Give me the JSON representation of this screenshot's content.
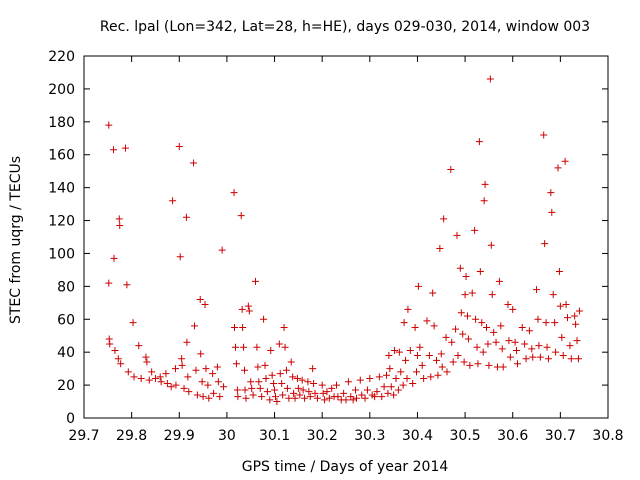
{
  "chart_data": {
    "type": "scatter",
    "title": "Rec. lpal (Lon=342, Lat=28, h=HE), days 029-030, 2014, window 003",
    "xlabel": "GPS time / Days of year 2014",
    "ylabel": "STEC from uqrg / TECUs",
    "xlim": [
      29.7,
      30.8
    ],
    "ylim": [
      0,
      220
    ],
    "xticks": [
      "29.7",
      "29.8",
      "29.9",
      "30",
      "30.1",
      "30.2",
      "30.3",
      "30.4",
      "30.5",
      "30.6",
      "30.7",
      "30.8"
    ],
    "yticks": [
      "0",
      "20",
      "40",
      "60",
      "80",
      "100",
      "120",
      "140",
      "160",
      "180",
      "200",
      "220"
    ],
    "grid": false,
    "legend": "none",
    "marker": "plus",
    "color": "#cc0000",
    "points": [
      [
        29.752,
        178
      ],
      [
        29.752,
        82
      ],
      [
        29.753,
        48
      ],
      [
        29.754,
        45
      ],
      [
        29.762,
        163
      ],
      [
        29.763,
        97
      ],
      [
        29.765,
        41
      ],
      [
        29.772,
        36
      ],
      [
        29.774,
        121
      ],
      [
        29.775,
        117
      ],
      [
        29.777,
        33
      ],
      [
        29.787,
        164
      ],
      [
        29.79,
        81
      ],
      [
        29.793,
        28
      ],
      [
        29.803,
        58
      ],
      [
        29.805,
        25
      ],
      [
        29.815,
        44
      ],
      [
        29.82,
        24
      ],
      [
        29.83,
        37
      ],
      [
        29.832,
        34
      ],
      [
        29.837,
        23
      ],
      [
        29.842,
        28
      ],
      [
        29.85,
        24
      ],
      [
        29.86,
        25
      ],
      [
        29.862,
        22
      ],
      [
        29.872,
        27
      ],
      [
        29.875,
        21
      ],
      [
        29.883,
        19
      ],
      [
        29.886,
        132
      ],
      [
        29.892,
        30
      ],
      [
        29.893,
        20
      ],
      [
        29.9,
        165
      ],
      [
        29.902,
        98
      ],
      [
        29.905,
        36
      ],
      [
        29.906,
        32
      ],
      [
        29.91,
        18
      ],
      [
        29.915,
        122
      ],
      [
        29.916,
        46
      ],
      [
        29.918,
        25
      ],
      [
        29.92,
        16
      ],
      [
        29.93,
        155
      ],
      [
        29.932,
        56
      ],
      [
        29.935,
        29
      ],
      [
        29.938,
        14
      ],
      [
        29.944,
        72
      ],
      [
        29.945,
        39
      ],
      [
        29.948,
        22
      ],
      [
        29.95,
        13
      ],
      [
        29.954,
        69
      ],
      [
        29.956,
        30
      ],
      [
        29.96,
        20
      ],
      [
        29.962,
        12
      ],
      [
        29.97,
        27
      ],
      [
        29.972,
        15
      ],
      [
        29.98,
        31
      ],
      [
        29.982,
        22
      ],
      [
        29.985,
        13
      ],
      [
        29.99,
        102
      ],
      [
        29.993,
        19
      ],
      [
        30.015,
        137
      ],
      [
        30.016,
        55
      ],
      [
        30.018,
        43
      ],
      [
        30.02,
        33
      ],
      [
        30.022,
        17
      ],
      [
        30.023,
        13
      ],
      [
        30.03,
        123
      ],
      [
        30.032,
        66
      ],
      [
        30.033,
        55
      ],
      [
        30.035,
        43
      ],
      [
        30.037,
        29
      ],
      [
        30.038,
        17
      ],
      [
        30.04,
        12
      ],
      [
        30.045,
        68
      ],
      [
        30.047,
        65
      ],
      [
        30.05,
        22
      ],
      [
        30.052,
        18
      ],
      [
        30.055,
        14
      ],
      [
        30.06,
        83
      ],
      [
        30.063,
        43
      ],
      [
        30.065,
        31
      ],
      [
        30.067,
        22
      ],
      [
        30.07,
        18
      ],
      [
        30.073,
        13
      ],
      [
        30.077,
        60
      ],
      [
        30.08,
        32
      ],
      [
        30.082,
        24
      ],
      [
        30.085,
        16
      ],
      [
        30.09,
        11
      ],
      [
        30.092,
        41
      ],
      [
        30.095,
        26
      ],
      [
        30.098,
        21
      ],
      [
        30.1,
        17
      ],
      [
        30.102,
        13
      ],
      [
        30.105,
        10
      ],
      [
        30.11,
        45
      ],
      [
        30.112,
        27
      ],
      [
        30.115,
        21
      ],
      [
        30.117,
        14
      ],
      [
        30.12,
        55
      ],
      [
        30.122,
        43
      ],
      [
        30.125,
        29
      ],
      [
        30.127,
        18
      ],
      [
        30.13,
        12
      ],
      [
        30.135,
        34
      ],
      [
        30.138,
        25
      ],
      [
        30.14,
        15
      ],
      [
        30.143,
        12
      ],
      [
        30.148,
        24
      ],
      [
        30.15,
        18
      ],
      [
        30.153,
        14
      ],
      [
        30.158,
        23
      ],
      [
        30.16,
        17
      ],
      [
        30.163,
        12
      ],
      [
        30.17,
        22
      ],
      [
        30.172,
        16
      ],
      [
        30.175,
        13
      ],
      [
        30.18,
        30
      ],
      [
        30.182,
        21
      ],
      [
        30.185,
        15
      ],
      [
        30.19,
        12
      ],
      [
        30.2,
        20
      ],
      [
        30.202,
        15
      ],
      [
        30.205,
        11
      ],
      [
        30.21,
        16
      ],
      [
        30.215,
        12
      ],
      [
        30.22,
        18
      ],
      [
        30.225,
        13
      ],
      [
        30.23,
        20
      ],
      [
        30.233,
        13
      ],
      [
        30.24,
        11
      ],
      [
        30.245,
        15
      ],
      [
        30.25,
        11
      ],
      [
        30.255,
        22
      ],
      [
        30.26,
        13
      ],
      [
        30.265,
        11
      ],
      [
        30.27,
        17
      ],
      [
        30.272,
        12
      ],
      [
        30.28,
        23
      ],
      [
        30.283,
        14
      ],
      [
        30.29,
        12
      ],
      [
        30.295,
        17
      ],
      [
        30.3,
        24
      ],
      [
        30.305,
        14
      ],
      [
        30.31,
        13
      ],
      [
        30.315,
        16
      ],
      [
        30.32,
        25
      ],
      [
        30.325,
        13
      ],
      [
        30.33,
        19
      ],
      [
        30.335,
        26
      ],
      [
        30.338,
        15
      ],
      [
        30.34,
        38
      ],
      [
        30.342,
        30
      ],
      [
        30.345,
        19
      ],
      [
        30.35,
        14
      ],
      [
        30.352,
        41
      ],
      [
        30.355,
        24
      ],
      [
        30.36,
        17
      ],
      [
        30.362,
        40
      ],
      [
        30.365,
        28
      ],
      [
        30.37,
        20
      ],
      [
        30.372,
        58
      ],
      [
        30.375,
        35
      ],
      [
        30.378,
        24
      ],
      [
        30.38,
        66
      ],
      [
        30.385,
        41
      ],
      [
        30.39,
        21
      ],
      [
        30.395,
        55
      ],
      [
        30.398,
        28
      ],
      [
        30.4,
        38
      ],
      [
        30.402,
        80
      ],
      [
        30.405,
        43
      ],
      [
        30.41,
        32
      ],
      [
        30.413,
        24
      ],
      [
        30.42,
        59
      ],
      [
        30.425,
        38
      ],
      [
        30.428,
        25
      ],
      [
        30.432,
        76
      ],
      [
        30.435,
        56
      ],
      [
        30.44,
        35
      ],
      [
        30.443,
        26
      ],
      [
        30.447,
        103
      ],
      [
        30.45,
        39
      ],
      [
        30.452,
        31
      ],
      [
        30.455,
        121
      ],
      [
        30.46,
        49
      ],
      [
        30.462,
        28
      ],
      [
        30.47,
        151
      ],
      [
        30.472,
        46
      ],
      [
        30.475,
        34
      ],
      [
        30.48,
        54
      ],
      [
        30.483,
        111
      ],
      [
        30.485,
        38
      ],
      [
        30.49,
        91
      ],
      [
        30.492,
        64
      ],
      [
        30.495,
        51
      ],
      [
        30.498,
        34
      ],
      [
        30.5,
        75
      ],
      [
        30.502,
        86
      ],
      [
        30.505,
        62
      ],
      [
        30.507,
        48
      ],
      [
        30.51,
        32
      ],
      [
        30.515,
        76
      ],
      [
        30.52,
        114
      ],
      [
        30.522,
        60
      ],
      [
        30.525,
        43
      ],
      [
        30.527,
        33
      ],
      [
        30.53,
        168
      ],
      [
        30.532,
        89
      ],
      [
        30.535,
        58
      ],
      [
        30.538,
        40
      ],
      [
        30.54,
        132
      ],
      [
        30.542,
        142
      ],
      [
        30.545,
        55
      ],
      [
        30.548,
        45
      ],
      [
        30.55,
        32
      ],
      [
        30.553,
        206
      ],
      [
        30.555,
        105
      ],
      [
        30.557,
        75
      ],
      [
        30.56,
        52
      ],
      [
        30.565,
        46
      ],
      [
        30.568,
        31
      ],
      [
        30.572,
        83
      ],
      [
        30.575,
        56
      ],
      [
        30.578,
        42
      ],
      [
        30.58,
        31
      ],
      [
        30.59,
        69
      ],
      [
        30.592,
        47
      ],
      [
        30.595,
        37
      ],
      [
        30.6,
        66
      ],
      [
        30.605,
        46
      ],
      [
        30.608,
        41
      ],
      [
        30.61,
        33
      ],
      [
        30.62,
        55
      ],
      [
        30.625,
        45
      ],
      [
        30.628,
        36
      ],
      [
        30.635,
        53
      ],
      [
        30.64,
        42
      ],
      [
        30.642,
        37
      ],
      [
        30.65,
        78
      ],
      [
        30.653,
        60
      ],
      [
        30.655,
        44
      ],
      [
        30.658,
        37
      ],
      [
        30.665,
        172
      ],
      [
        30.667,
        106
      ],
      [
        30.67,
        58
      ],
      [
        30.672,
        43
      ],
      [
        30.675,
        36
      ],
      [
        30.68,
        137
      ],
      [
        30.682,
        125
      ],
      [
        30.685,
        75
      ],
      [
        30.688,
        58
      ],
      [
        30.69,
        40
      ],
      [
        30.695,
        152
      ],
      [
        30.698,
        89
      ],
      [
        30.7,
        68
      ],
      [
        30.703,
        49
      ],
      [
        30.706,
        38
      ],
      [
        30.71,
        156
      ],
      [
        30.712,
        69
      ],
      [
        30.715,
        61
      ],
      [
        30.72,
        44
      ],
      [
        30.723,
        36
      ],
      [
        30.73,
        62
      ],
      [
        30.732,
        57
      ],
      [
        30.735,
        47
      ],
      [
        30.738,
        36
      ],
      [
        30.74,
        65
      ]
    ]
  }
}
